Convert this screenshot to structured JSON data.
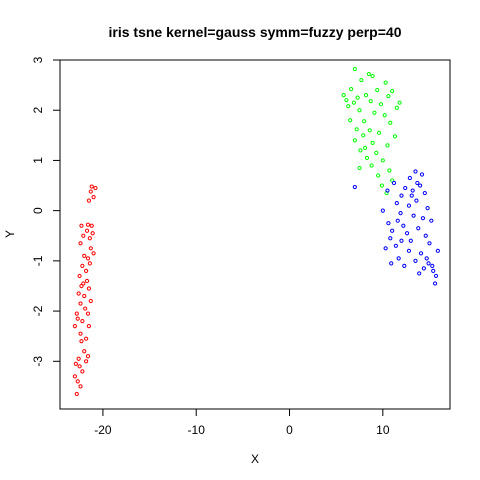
{
  "chart_data": {
    "type": "scatter",
    "title": "iris tsne kernel=gauss symm=fuzzy perp=40",
    "xlabel": "X",
    "ylabel": "Y",
    "xlim": [
      -24.6,
      17.2
    ],
    "ylim": [
      -3.95,
      3.0
    ],
    "xticks": [
      -20,
      -10,
      0,
      10
    ],
    "yticks": [
      -3,
      -2,
      -1,
      0,
      1,
      2,
      3
    ],
    "grid": false,
    "legend": "none",
    "series": [
      {
        "color": "#ff0000",
        "points": [
          [
            -21.2,
            0.48
          ],
          [
            -20.8,
            0.45
          ],
          [
            -21.3,
            0.38
          ],
          [
            -21.0,
            0.27
          ],
          [
            -21.5,
            0.2
          ],
          [
            -22.3,
            -0.3
          ],
          [
            -21.6,
            -0.28
          ],
          [
            -21.2,
            -0.3
          ],
          [
            -21.7,
            -0.4
          ],
          [
            -21.1,
            -0.45
          ],
          [
            -22.1,
            -0.5
          ],
          [
            -21.4,
            -0.55
          ],
          [
            -22.4,
            -0.65
          ],
          [
            -21.3,
            -0.75
          ],
          [
            -22.0,
            -0.9
          ],
          [
            -21.0,
            -0.85
          ],
          [
            -21.6,
            -0.95
          ],
          [
            -21.4,
            -1.05
          ],
          [
            -22.2,
            -1.1
          ],
          [
            -21.8,
            -1.2
          ],
          [
            -22.5,
            -1.3
          ],
          [
            -21.7,
            -1.4
          ],
          [
            -22.3,
            -1.5
          ],
          [
            -21.5,
            -1.55
          ],
          [
            -22.6,
            -1.65
          ],
          [
            -22.0,
            -1.7
          ],
          [
            -21.3,
            -1.8
          ],
          [
            -22.4,
            -1.85
          ],
          [
            -21.9,
            -1.95
          ],
          [
            -22.8,
            -2.05
          ],
          [
            -21.6,
            -2.05
          ],
          [
            -22.7,
            -2.15
          ],
          [
            -22.2,
            -2.2
          ],
          [
            -21.5,
            -2.3
          ],
          [
            -23.0,
            -2.3
          ],
          [
            -22.4,
            -2.45
          ],
          [
            -21.8,
            -2.55
          ],
          [
            -22.3,
            -2.6
          ],
          [
            -22.0,
            -2.8
          ],
          [
            -21.6,
            -2.9
          ],
          [
            -22.6,
            -2.95
          ],
          [
            -22.9,
            -3.05
          ],
          [
            -22.5,
            -3.1
          ],
          [
            -22.2,
            -3.2
          ],
          [
            -23.0,
            -3.3
          ],
          [
            -22.7,
            -3.4
          ],
          [
            -22.4,
            -3.5
          ],
          [
            -22.8,
            -3.65
          ],
          [
            -21.8,
            -3.0
          ],
          [
            -22.1,
            -1.45
          ]
        ]
      },
      {
        "color": "#00ff00",
        "points": [
          [
            7.0,
            2.82
          ],
          [
            8.5,
            2.72
          ],
          [
            8.9,
            2.68
          ],
          [
            7.7,
            2.6
          ],
          [
            10.3,
            2.55
          ],
          [
            6.6,
            2.42
          ],
          [
            9.4,
            2.4
          ],
          [
            11.0,
            2.38
          ],
          [
            5.8,
            2.3
          ],
          [
            7.3,
            2.25
          ],
          [
            8.2,
            2.3
          ],
          [
            10.6,
            2.28
          ],
          [
            6.1,
            2.2
          ],
          [
            6.9,
            2.15
          ],
          [
            8.7,
            2.18
          ],
          [
            9.8,
            2.12
          ],
          [
            11.5,
            2.05
          ],
          [
            7.5,
            2.0
          ],
          [
            9.1,
            1.95
          ],
          [
            10.2,
            1.9
          ],
          [
            6.5,
            1.8
          ],
          [
            8.0,
            1.78
          ],
          [
            10.8,
            1.75
          ],
          [
            7.2,
            1.62
          ],
          [
            8.6,
            1.6
          ],
          [
            9.6,
            1.55
          ],
          [
            7.9,
            1.5
          ],
          [
            11.3,
            1.48
          ],
          [
            7.0,
            1.4
          ],
          [
            8.9,
            1.35
          ],
          [
            10.5,
            1.3
          ],
          [
            7.6,
            1.2
          ],
          [
            9.3,
            1.15
          ],
          [
            8.3,
            1.05
          ],
          [
            10.0,
            1.0
          ],
          [
            7.5,
            0.85
          ],
          [
            8.8,
            0.9
          ],
          [
            10.7,
            0.8
          ],
          [
            9.5,
            0.7
          ],
          [
            11.0,
            0.6
          ],
          [
            9.9,
            0.5
          ],
          [
            10.4,
            0.35
          ],
          [
            6.3,
            2.08
          ],
          [
            11.8,
            2.15
          ],
          [
            8.1,
            1.25
          ]
        ]
      },
      {
        "color": "#0000ff",
        "points": [
          [
            13.5,
            0.78
          ],
          [
            14.2,
            0.72
          ],
          [
            12.9,
            0.65
          ],
          [
            13.7,
            0.55
          ],
          [
            14.0,
            0.5
          ],
          [
            11.2,
            0.55
          ],
          [
            12.4,
            0.45
          ],
          [
            13.2,
            0.4
          ],
          [
            10.5,
            0.4
          ],
          [
            14.5,
            0.35
          ],
          [
            7.0,
            0.47
          ],
          [
            12.0,
            0.3
          ],
          [
            13.6,
            0.2
          ],
          [
            11.5,
            0.15
          ],
          [
            12.8,
            0.1
          ],
          [
            14.8,
            0.05
          ],
          [
            10.0,
            0.0
          ],
          [
            11.9,
            -0.05
          ],
          [
            13.3,
            -0.1
          ],
          [
            14.3,
            -0.15
          ],
          [
            15.2,
            -0.2
          ],
          [
            10.6,
            -0.25
          ],
          [
            12.2,
            -0.3
          ],
          [
            13.8,
            -0.35
          ],
          [
            11.0,
            -0.4
          ],
          [
            12.6,
            -0.45
          ],
          [
            14.6,
            -0.5
          ],
          [
            10.8,
            -0.55
          ],
          [
            13.0,
            -0.6
          ],
          [
            15.0,
            -0.65
          ],
          [
            11.4,
            -0.7
          ],
          [
            12.8,
            -0.8
          ],
          [
            14.1,
            -0.85
          ],
          [
            10.3,
            -0.75
          ],
          [
            15.9,
            -0.8
          ],
          [
            11.7,
            -0.95
          ],
          [
            13.5,
            -1.0
          ],
          [
            14.9,
            -1.05
          ],
          [
            10.9,
            -1.05
          ],
          [
            12.3,
            -1.1
          ],
          [
            14.4,
            -1.15
          ],
          [
            15.4,
            -1.2
          ],
          [
            13.9,
            -1.25
          ],
          [
            15.7,
            -1.3
          ],
          [
            15.6,
            -1.45
          ],
          [
            12.0,
            -0.6
          ],
          [
            13.1,
            0.3
          ],
          [
            14.7,
            -0.95
          ],
          [
            15.3,
            -1.1
          ],
          [
            11.6,
            -0.2
          ]
        ]
      }
    ]
  }
}
